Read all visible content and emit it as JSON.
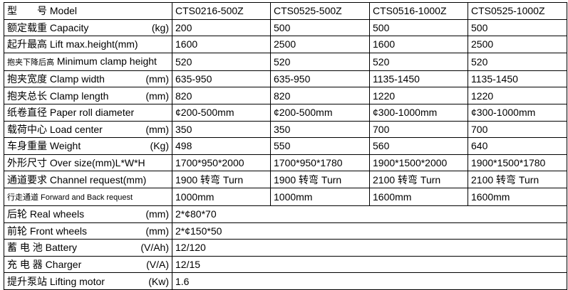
{
  "rows": [
    {
      "label": "型　　号 Model",
      "unit": "",
      "values": [
        "CTS0216-500Z",
        "CTS0525-500Z",
        "CTS0516-1000Z",
        "CTS0525-1000Z"
      ]
    },
    {
      "label": "额定载重  Capacity",
      "unit": "(kg)",
      "values": [
        "200",
        "500",
        "500",
        "500"
      ]
    },
    {
      "label": "起升最高 Lift max.height(mm)",
      "unit": "",
      "values": [
        "1600",
        "2500",
        "1600",
        "2500"
      ]
    },
    {
      "label_small": "抱夹下降后高",
      "label": " Minimum clamp height",
      "unit": "",
      "values": [
        "520",
        "520",
        "520",
        "520"
      ]
    },
    {
      "label": "抱夹宽度 Clamp width",
      "unit": "(mm)",
      "values": [
        "635-950",
        "635-950",
        "1135-1450",
        "1135-1450"
      ]
    },
    {
      "label": "抱夹总长 Clamp length",
      "unit": "(mm)",
      "values": [
        "820",
        "820",
        "1220",
        "1220"
      ]
    },
    {
      "label": "纸卷直径 Paper roll diameter",
      "unit": "",
      "values": [
        "¢200-500mm",
        "¢200-500mm",
        "¢300-1000mm",
        "¢300-1000mm"
      ]
    },
    {
      "label": "载荷中心 Load center",
      "unit": "(mm)",
      "values": [
        "350",
        "350",
        "700",
        "700"
      ]
    },
    {
      "label": "车身重量 Weight",
      "unit": "(Kg)",
      "values": [
        "498",
        "550",
        "560",
        "640"
      ]
    },
    {
      "label": "外形尺寸 Over size(mm)L*W*H",
      "unit": "",
      "values": [
        "1700*950*2000",
        "1700*950*1780",
        "1900*1500*2000",
        "1900*1500*1780"
      ]
    },
    {
      "label": "通道要求  Channel request(mm)",
      "unit": "",
      "values": [
        "1900 转弯 Turn",
        "1900 转弯 Turn",
        "2100 转弯 Turn",
        "2100 转弯 Turn"
      ]
    },
    {
      "label_small": "行走通道 Forward and Back request",
      "label": "",
      "unit": "",
      "values": [
        "1000mm",
        "1000mm",
        "1600mm",
        "1600mm"
      ]
    },
    {
      "label": "后轮   Real wheels",
      "unit": "(mm)",
      "value": "2*¢80*70"
    },
    {
      "label": "前轮  Front wheels",
      "unit": "(mm)",
      "value": "2*¢150*50"
    },
    {
      "label": "蓄 电 池 Battery",
      "unit": "(V/Ah)",
      "value": "12/120"
    },
    {
      "label": "充 电 器 Charger",
      "unit": "(V/A)",
      "value": "12/15"
    },
    {
      "label": "提升泵站 Lifting motor",
      "unit": "(Kw)",
      "value": "1.6"
    }
  ]
}
